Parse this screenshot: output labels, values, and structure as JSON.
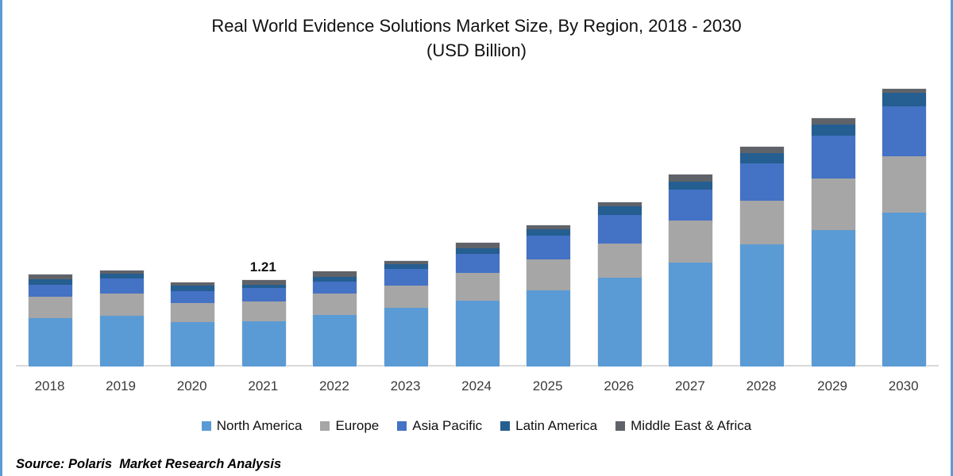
{
  "page": {
    "title_line1": "Real World Evidence Solutions Market Size, By Region, 2018 - 2030",
    "title_line2": "(USD Billion)",
    "source": "Source: Polaris  Market Research Analysis"
  },
  "chart_data": {
    "type": "bar",
    "stacked": true,
    "title": "Real World Evidence Solutions Market Size, By Region, 2018 - 2030",
    "subtitle": "(USD Billion)",
    "unit": "USD Billion",
    "categories": [
      "2018",
      "2019",
      "2020",
      "2021",
      "2022",
      "2023",
      "2024",
      "2025",
      "2026",
      "2027",
      "2028",
      "2029",
      "2030"
    ],
    "series": [
      {
        "name": "North America",
        "color": "#5B9BD5",
        "values": [
          0.68,
          0.71,
          0.62,
          0.63,
          0.72,
          0.82,
          0.92,
          1.07,
          1.24,
          1.46,
          1.71,
          1.91,
          2.16
        ]
      },
      {
        "name": "Europe",
        "color": "#A6A6A6",
        "values": [
          0.3,
          0.31,
          0.27,
          0.28,
          0.3,
          0.31,
          0.39,
          0.43,
          0.48,
          0.58,
          0.61,
          0.72,
          0.78
        ]
      },
      {
        "name": "Asia Pacific",
        "color": "#4472C4",
        "values": [
          0.17,
          0.21,
          0.17,
          0.19,
          0.17,
          0.24,
          0.27,
          0.33,
          0.4,
          0.44,
          0.53,
          0.6,
          0.7
        ]
      },
      {
        "name": "Latin America",
        "color": "#255E91",
        "values": [
          0.07,
          0.07,
          0.07,
          0.05,
          0.07,
          0.06,
          0.08,
          0.09,
          0.12,
          0.11,
          0.14,
          0.16,
          0.19
        ]
      },
      {
        "name": "Middle East & Africa",
        "color": "#5F6369",
        "values": [
          0.07,
          0.04,
          0.05,
          0.06,
          0.07,
          0.05,
          0.07,
          0.06,
          0.06,
          0.1,
          0.09,
          0.09,
          0.06
        ]
      }
    ],
    "totals": [
      1.29,
      1.34,
      1.18,
      1.21,
      1.33,
      1.48,
      1.73,
      1.98,
      2.3,
      2.69,
      3.08,
      3.48,
      3.89
    ],
    "data_labels": [
      {
        "category": "2021",
        "text": "1.21"
      }
    ],
    "ylim": [
      0,
      4.3
    ],
    "grid": false,
    "legend_position": "bottom",
    "axis_line_color": "#D9D9D9"
  }
}
